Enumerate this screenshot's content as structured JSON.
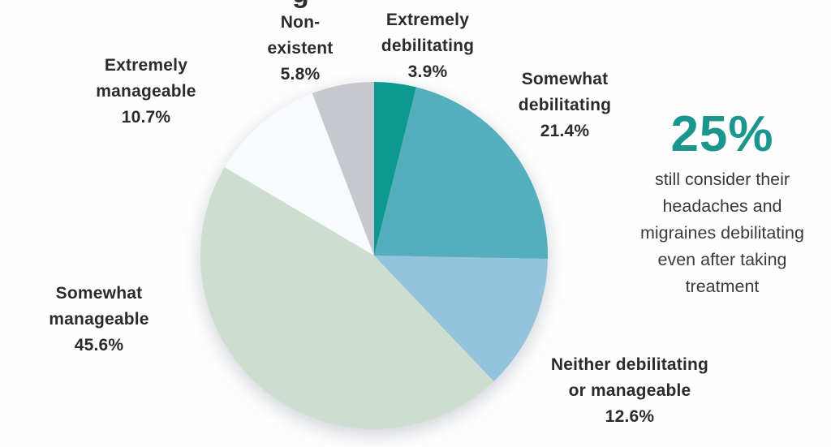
{
  "cropped_title_fragment": "g",
  "chart_data": {
    "type": "pie",
    "title": "",
    "start_angle_deg": -90,
    "direction": "clockwise",
    "legend_position": "labels-around-pie",
    "segments": [
      {
        "id": "extremely-debilitating",
        "label": "Extremely debilitating",
        "value": 3.9,
        "pct_label": "3.9%",
        "color": "#0c9a90",
        "display": "Extremely\ndebilitating\n3.9%"
      },
      {
        "id": "somewhat-debilitating",
        "label": "Somewhat debilitating",
        "value": 21.4,
        "pct_label": "21.4%",
        "color": "#55aebb",
        "display": "Somewhat\ndebilitating\n21.4%"
      },
      {
        "id": "neither-debilitating-or-manageable",
        "label": "Neither debilitating or manageable",
        "value": 12.6,
        "pct_label": "12.6%",
        "color": "#93c4dc",
        "display": "Neither debilitating\nor manageable\n12.6%"
      },
      {
        "id": "somewhat-manageable",
        "label": "Somewhat manageable",
        "value": 45.6,
        "pct_label": "45.6%",
        "color": "#cdded0",
        "display": "Somewhat\nmanageable\n45.6%"
      },
      {
        "id": "extremely-manageable",
        "label": "Extremely manageable",
        "value": 10.7,
        "pct_label": "10.7%",
        "color": "#f8fafd",
        "display": "Extremely\nmanageable\n10.7%"
      },
      {
        "id": "non-existent",
        "label": "Non-existent",
        "value": 5.8,
        "pct_label": "5.8%",
        "color": "#c7c8cd",
        "display": "Non-\nexistent\n5.8%"
      }
    ]
  },
  "callout": {
    "stat": "25%",
    "stat_color": "#1a968f",
    "text": "still consider their\nheadaches and\nmigraines debilitating\neven after taking\ntreatment"
  },
  "colors": {
    "accent_teal": "#1a968f",
    "label_text": "#2b2b2b",
    "background": "#fefefe"
  }
}
